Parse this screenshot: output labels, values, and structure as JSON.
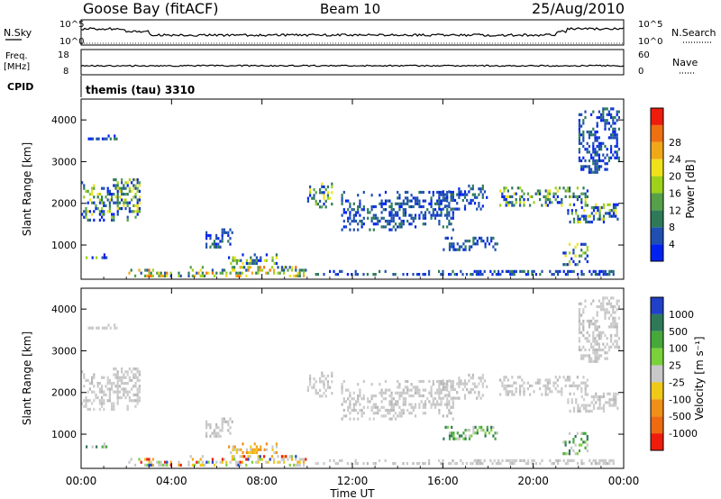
{
  "header": {
    "station": "Goose Bay (fitACF)",
    "beam": "Beam 10",
    "date": "25/Aug/2010"
  },
  "noise_panel": {
    "left_label": "N.Sky",
    "right_label": "N.Search",
    "left_ticks": [
      "10^5",
      "10^0"
    ],
    "right_ticks": [
      "10^5",
      "10^0"
    ]
  },
  "freq_panel": {
    "left_label_1": "Freq.",
    "left_label_2": "[MHz]",
    "right_label": "Nave",
    "left_ticks": [
      "18",
      "8"
    ],
    "right_ticks": [
      "60",
      "0"
    ]
  },
  "cpid": {
    "label": "CPID",
    "value": "themis (tau) 3310"
  },
  "x_axis": {
    "ticks": [
      "00:00",
      "04:00",
      "08:00",
      "12:00",
      "16:00",
      "20:00",
      "00:00"
    ],
    "label": "Time UT"
  },
  "chart_data": [
    {
      "type": "heatmap",
      "name": "power",
      "ylabel": "Slant Range [km]",
      "ylim": [
        180,
        4500
      ],
      "yticks": [
        "1000",
        "2000",
        "3000",
        "4000"
      ],
      "colorbar": {
        "label": "Power [dB]",
        "ticks": [
          "4",
          "8",
          "12",
          "16",
          "20",
          "24",
          "28"
        ],
        "colors": [
          "#0022ee",
          "#1f4fb0",
          "#2e7a58",
          "#56a04a",
          "#9ed21a",
          "#f0e21a",
          "#f0a818",
          "#ef7011",
          "#ee1c0c"
        ]
      },
      "regions": [
        {
          "t0": 0.0,
          "t1": 2.7,
          "r0": 1500,
          "r1": 2600,
          "level": "mid"
        },
        {
          "t0": 0.3,
          "t1": 1.7,
          "r0": 3500,
          "r1": 3650,
          "level": "low"
        },
        {
          "t0": 0.2,
          "t1": 1.2,
          "r0": 650,
          "r1": 800,
          "level": "mid"
        },
        {
          "t0": 2.0,
          "t1": 10.0,
          "r0": 200,
          "r1": 500,
          "level": "high"
        },
        {
          "t0": 6.5,
          "t1": 8.7,
          "r0": 480,
          "r1": 800,
          "level": "mid"
        },
        {
          "t0": 5.5,
          "t1": 6.8,
          "r0": 900,
          "r1": 1400,
          "level": "low"
        },
        {
          "t0": 10.0,
          "t1": 11.2,
          "r0": 1850,
          "r1": 2500,
          "level": "mid"
        },
        {
          "t0": 10.0,
          "t1": 24.0,
          "r0": 200,
          "r1": 400,
          "level": "low"
        },
        {
          "t0": 11.5,
          "t1": 16.5,
          "r0": 1300,
          "r1": 2300,
          "level": "low"
        },
        {
          "t0": 15.8,
          "t1": 18.0,
          "r0": 1800,
          "r1": 2450,
          "level": "low"
        },
        {
          "t0": 16.0,
          "t1": 18.5,
          "r0": 800,
          "r1": 1200,
          "level": "low"
        },
        {
          "t0": 18.5,
          "t1": 22.5,
          "r0": 1900,
          "r1": 2400,
          "level": "mid"
        },
        {
          "t0": 21.5,
          "t1": 23.8,
          "r0": 1500,
          "r1": 2000,
          "level": "mid"
        },
        {
          "t0": 21.3,
          "t1": 22.5,
          "r0": 450,
          "r1": 1050,
          "level": "mid"
        },
        {
          "t0": 22.0,
          "t1": 23.9,
          "r0": 2700,
          "r1": 4300,
          "level": "low"
        }
      ]
    },
    {
      "type": "heatmap",
      "name": "velocity",
      "ylabel": "Slant Range [km]",
      "ylim": [
        180,
        4500
      ],
      "yticks": [
        "1000",
        "2000",
        "3000",
        "4000"
      ],
      "colorbar": {
        "label": "Velocity [m s⁻¹]",
        "ticks": [
          "1000",
          "500",
          "100",
          "25",
          "-25",
          "-100",
          "-500",
          "-1000"
        ],
        "colors": [
          "#2040c8",
          "#2e7a58",
          "#46a83a",
          "#7ad23a",
          "#c8c8c8",
          "#f0c818",
          "#f09018",
          "#ee6a10",
          "#ee1c0c"
        ]
      },
      "regions": [
        {
          "t0": 0.0,
          "t1": 2.7,
          "r0": 1500,
          "r1": 2600,
          "level": "gray"
        },
        {
          "t0": 0.3,
          "t1": 1.7,
          "r0": 3500,
          "r1": 3650,
          "level": "gray"
        },
        {
          "t0": 0.2,
          "t1": 1.2,
          "r0": 650,
          "r1": 800,
          "level": "green"
        },
        {
          "t0": 2.0,
          "t1": 10.0,
          "r0": 200,
          "r1": 500,
          "level": "mixed"
        },
        {
          "t0": 6.5,
          "t1": 8.7,
          "r0": 480,
          "r1": 800,
          "level": "orange"
        },
        {
          "t0": 5.5,
          "t1": 6.8,
          "r0": 900,
          "r1": 1400,
          "level": "gray"
        },
        {
          "t0": 10.0,
          "t1": 11.2,
          "r0": 1850,
          "r1": 2500,
          "level": "gray"
        },
        {
          "t0": 10.0,
          "t1": 24.0,
          "r0": 200,
          "r1": 400,
          "level": "gray"
        },
        {
          "t0": 11.5,
          "t1": 16.5,
          "r0": 1300,
          "r1": 2300,
          "level": "gray"
        },
        {
          "t0": 15.8,
          "t1": 18.0,
          "r0": 1800,
          "r1": 2450,
          "level": "gray"
        },
        {
          "t0": 16.0,
          "t1": 18.5,
          "r0": 800,
          "r1": 1200,
          "level": "green"
        },
        {
          "t0": 18.5,
          "t1": 22.5,
          "r0": 1900,
          "r1": 2400,
          "level": "gray"
        },
        {
          "t0": 21.5,
          "t1": 23.8,
          "r0": 1500,
          "r1": 2000,
          "level": "gray"
        },
        {
          "t0": 21.3,
          "t1": 22.5,
          "r0": 450,
          "r1": 1050,
          "level": "green"
        },
        {
          "t0": 22.0,
          "t1": 23.9,
          "r0": 2700,
          "r1": 4300,
          "level": "gray"
        }
      ]
    }
  ]
}
